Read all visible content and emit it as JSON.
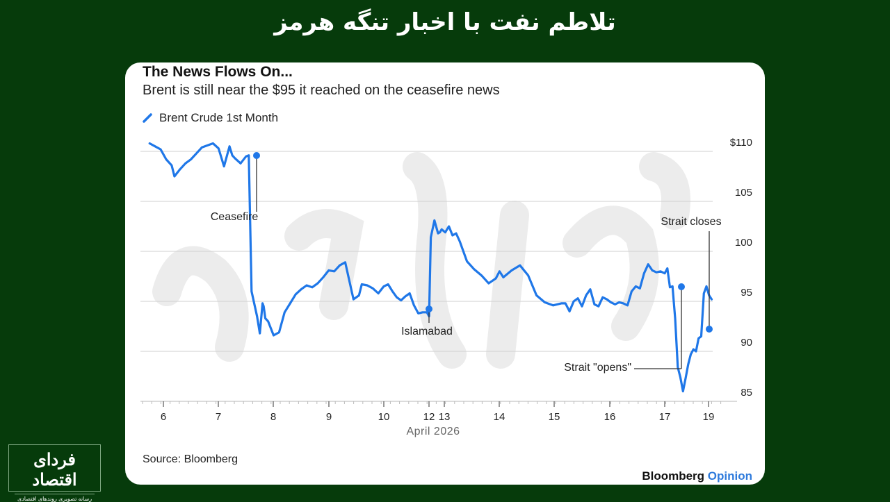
{
  "headline": "تلاطم نفت با اخبار تنگه هرمز",
  "card": {
    "title": "The News Flows On...",
    "subtitle": "Brent is still near the $95 it reached on the ceasefire news",
    "legend_label": "Brent Crude 1st Month",
    "source": "Source: Bloomberg",
    "brand_main": "Bloomberg",
    "brand_sub": "Opinion",
    "line_color": "#1f77e8",
    "accent_color": "#2f7bdc"
  },
  "logo": {
    "main": "فردای اقتصاد",
    "sub": "رسانه تصویری روندهای اقتصادی"
  },
  "chart_data": {
    "type": "line",
    "title": "The News Flows On...",
    "subtitle": "Brent is still near the $95 it reached on the ceasefire news",
    "xlabel": "April 2026",
    "ylabel": "",
    "ylim": [
      85,
      110
    ],
    "y_ticks": [
      "$110",
      "105",
      "100",
      "95",
      "90",
      "85"
    ],
    "x_ticks": [
      "6",
      "7",
      "8",
      "9",
      "10",
      "12",
      "13",
      "14",
      "15",
      "16",
      "17",
      "19"
    ],
    "grid": true,
    "legend_position": "top-left",
    "series": [
      {
        "name": "Brent Crude 1st Month",
        "x": [
          5.75,
          5.85,
          5.95,
          6.05,
          6.15,
          6.2,
          6.3,
          6.4,
          6.5,
          6.6,
          6.7,
          6.8,
          6.9,
          7.0,
          7.1,
          7.2,
          7.25,
          7.3,
          7.4,
          7.5,
          7.55,
          7.6,
          7.7,
          7.75,
          7.8,
          7.82,
          7.85,
          7.9,
          8.0,
          8.1,
          8.2,
          8.3,
          8.4,
          8.5,
          8.6,
          8.7,
          8.8,
          8.9,
          9.0,
          9.1,
          9.2,
          9.3,
          9.45,
          9.55,
          9.6,
          9.7,
          9.8,
          9.9,
          10.0,
          10.1,
          10.2,
          10.3,
          10.4,
          10.5,
          10.6,
          10.7,
          10.8,
          10.9,
          11.0,
          11.05,
          11.1,
          11.2,
          11.3,
          11.35,
          11.4,
          11.5,
          11.6,
          11.7,
          11.8,
          11.9,
          12.1,
          12.3,
          12.5,
          12.7,
          12.9,
          13.0,
          13.1,
          13.3,
          13.5,
          13.7,
          13.9,
          14.1,
          14.3,
          14.5,
          14.6,
          14.7,
          14.8,
          14.9,
          15.0,
          15.1,
          15.2,
          15.3,
          15.4,
          15.5,
          15.6,
          15.7,
          15.8,
          15.9,
          16.0,
          16.1,
          16.2,
          16.3,
          16.4,
          16.5,
          16.6,
          16.7,
          16.8,
          16.9,
          17.0,
          17.05,
          17.1,
          17.15,
          17.2,
          17.25,
          17.3,
          17.35,
          17.4,
          17.45,
          17.5,
          17.55,
          17.6,
          17.65,
          17.7,
          17.75,
          17.8,
          17.85,
          17.9
        ],
        "values": [
          110.8,
          110.5,
          110.2,
          109.2,
          108.6,
          107.5,
          108.2,
          108.8,
          109.2,
          109.8,
          110.4,
          110.6,
          110.8,
          110.3,
          108.5,
          110.5,
          109.6,
          109.3,
          108.8,
          109.5,
          109.6,
          96.0,
          93.5,
          91.8,
          94.8,
          94.5,
          93.3,
          93.0,
          91.6,
          91.9,
          93.9,
          94.8,
          95.7,
          96.2,
          96.6,
          96.4,
          96.8,
          97.4,
          98.1,
          98.0,
          98.6,
          98.9,
          95.2,
          95.6,
          96.7,
          96.6,
          96.3,
          95.8,
          96.5,
          96.7,
          96.0,
          95.4,
          95.1,
          95.5,
          95.8,
          94.6,
          93.8,
          93.9,
          93.9,
          93.5,
          101.4,
          103.1,
          101.8,
          101.9,
          102.2,
          101.9,
          102.5,
          101.6,
          101.8,
          101.0,
          99.0,
          98.2,
          97.6,
          96.8,
          97.3,
          98.0,
          97.4,
          98.1,
          98.6,
          97.6,
          95.6,
          94.9,
          94.6,
          94.8,
          94.8,
          94.0,
          95.0,
          95.3,
          94.5,
          95.6,
          96.2,
          94.7,
          94.5,
          95.4,
          95.2,
          94.9,
          94.7,
          94.9,
          94.8,
          94.6,
          96.0,
          96.5,
          96.3,
          97.8,
          98.7,
          98.1,
          97.9,
          98.0,
          97.8,
          98.3,
          96.4,
          96.5,
          93.3,
          88.4,
          87.4,
          86.0,
          87.3,
          88.7,
          89.7,
          90.2,
          90.0,
          91.3,
          91.5,
          95.8,
          96.5,
          95.6,
          95.2
        ],
        "color": "#1f77e8"
      }
    ],
    "annotations": [
      {
        "label": "Ceasefire",
        "x": 7.7,
        "value": 109.6
      },
      {
        "label": "Islamabad",
        "x": 11.05,
        "value": 93.9
      },
      {
        "label": "Strait \"opens\"",
        "x": 17.15,
        "value": 96.4
      },
      {
        "label": "Strait closes",
        "x": 17.75,
        "value": 91.6
      }
    ]
  }
}
